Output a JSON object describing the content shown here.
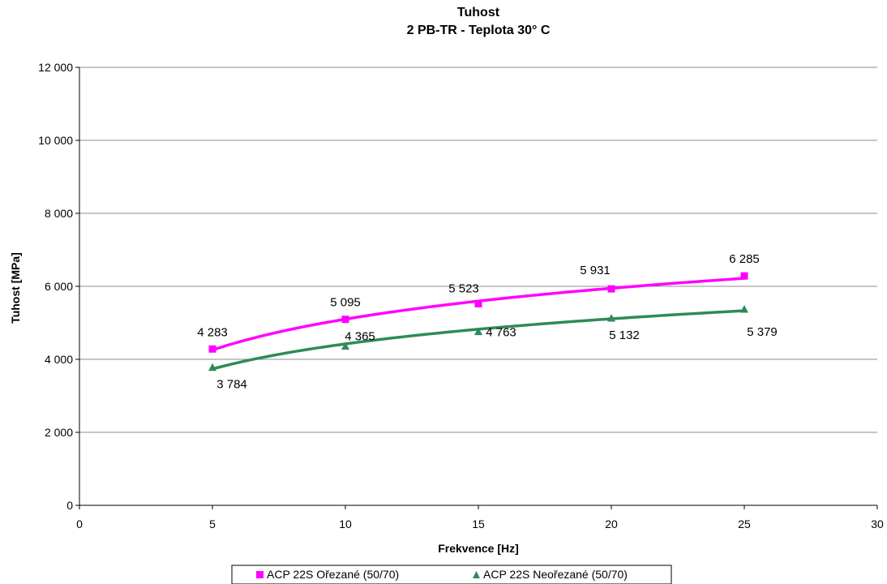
{
  "chart_data": {
    "type": "scatter",
    "title": "Tuhost",
    "subtitle": "2 PB-TR - Teplota 30° C",
    "xlabel": "Frekvence [Hz]",
    "ylabel": "Tuhost [MPa]",
    "xlim": [
      0,
      30
    ],
    "ylim": [
      0,
      12000
    ],
    "x_ticks": [
      0,
      5,
      10,
      15,
      20,
      25,
      30
    ],
    "y_ticks": [
      0,
      2000,
      4000,
      6000,
      8000,
      10000,
      12000
    ],
    "x_tick_labels": [
      "0",
      "5",
      "10",
      "15",
      "20",
      "25",
      "30"
    ],
    "y_tick_labels": [
      "0",
      "2 000",
      "4 000",
      "6 000",
      "8 000",
      "10 000",
      "12 000"
    ],
    "grid": "horizontal",
    "legend_position": "bottom",
    "trendline": "logarithmic",
    "x": [
      5,
      10,
      15,
      20,
      25
    ],
    "series": [
      {
        "name": "ACP 22S Ořezané (50/70)",
        "marker": "square",
        "color": "#ff00ff",
        "values": [
          4283,
          5095,
          5523,
          5931,
          6285
        ],
        "labels": [
          "4 283",
          "5 095",
          "5 523",
          "5 931",
          "6 285"
        ]
      },
      {
        "name": "ACP 22S Neořezané (50/70)",
        "marker": "triangle",
        "color": "#2e8b57",
        "values": [
          3784,
          4365,
          4763,
          5132,
          5379
        ],
        "labels": [
          "3 784",
          "4 365",
          "4 763",
          "5 132",
          "5 379"
        ]
      }
    ]
  }
}
